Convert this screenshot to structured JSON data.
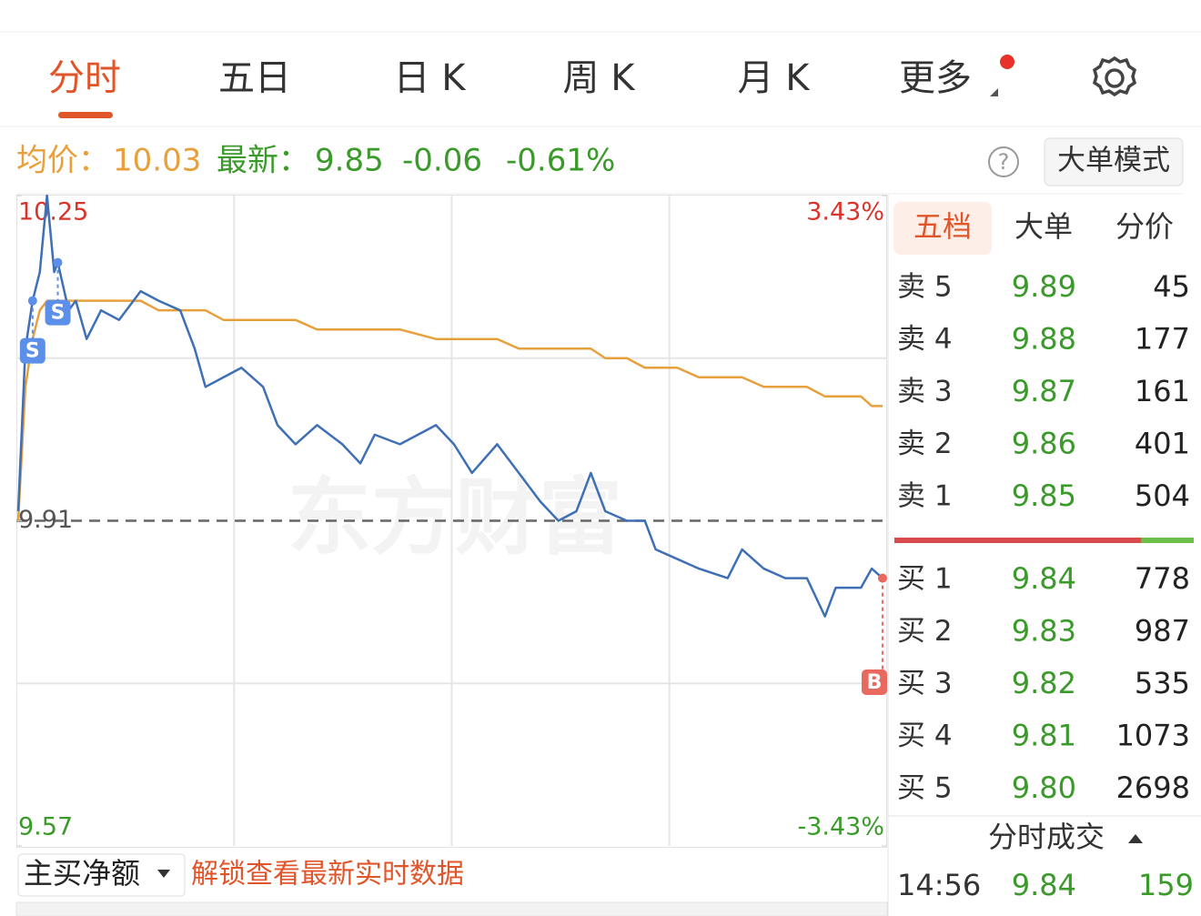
{
  "tabs": [
    "分时",
    "五日",
    "日 K",
    "周 K",
    "月 K",
    "更多"
  ],
  "info": {
    "avg_label": "均价：",
    "avg": "10.03",
    "latest_label": "最新：",
    "latest": "9.85",
    "change": "-0.06",
    "change_pct": "-0.61%",
    "help": "?",
    "mode_button": "大单模式"
  },
  "watermark": "东方财富",
  "chart_data": {
    "type": "line",
    "x": [
      0,
      2,
      4,
      6,
      8,
      10,
      11,
      14,
      16,
      19,
      23,
      28,
      34,
      39,
      45,
      49,
      52,
      57,
      62,
      68,
      72,
      77,
      83,
      90,
      95,
      99,
      106,
      116,
      121,
      126,
      133,
      139,
      145,
      150,
      155,
      159,
      163,
      169,
      174,
      177,
      183,
      189,
      197,
      201,
      207,
      213,
      219,
      224,
      227,
      234,
      237,
      240
    ],
    "series": [
      {
        "color": "#3f6fb5",
        "values": [
          9.92,
          10.09,
          10.14,
          10.17,
          10.25,
          10.17,
          10.18,
          10.13,
          10.14,
          10.1,
          10.13,
          10.12,
          10.15,
          10.14,
          10.13,
          10.09,
          10.05,
          10.06,
          10.07,
          10.05,
          10.01,
          9.99,
          10.01,
          9.99,
          9.97,
          10.0,
          9.99,
          10.01,
          9.99,
          9.96,
          9.99,
          9.96,
          9.93,
          9.91,
          9.92,
          9.96,
          9.92,
          9.91,
          9.91,
          9.88,
          9.87,
          9.86,
          9.85,
          9.88,
          9.86,
          9.85,
          9.85,
          9.81,
          9.84,
          9.84,
          9.86,
          9.85
        ]
      },
      {
        "color": "#e8a03c",
        "values": [
          9.91,
          10.05,
          10.1,
          10.13,
          10.14,
          10.14,
          10.14,
          10.14,
          10.14,
          10.14,
          10.14,
          10.14,
          10.14,
          10.13,
          10.13,
          10.13,
          10.13,
          10.12,
          10.12,
          10.12,
          10.12,
          10.12,
          10.11,
          10.11,
          10.11,
          10.11,
          10.11,
          10.1,
          10.1,
          10.1,
          10.1,
          10.09,
          10.09,
          10.09,
          10.09,
          10.09,
          10.08,
          10.08,
          10.07,
          10.07,
          10.07,
          10.06,
          10.06,
          10.06,
          10.05,
          10.05,
          10.05,
          10.04,
          10.04,
          10.04,
          10.03,
          10.03
        ]
      }
    ],
    "xlim": [
      0,
      240
    ],
    "ylim": [
      9.57,
      10.25
    ],
    "yticks": [
      10.25,
      9.91,
      9.57
    ],
    "base_close": 9.91,
    "y2lim": [
      -3.43,
      3.43
    ],
    "y2ticks": [
      {
        "value": 3.43,
        "label": "3.43%"
      },
      {
        "value": -3.43,
        "label": "-3.43%"
      }
    ],
    "grid": true,
    "markers": [
      {
        "label": "S",
        "x": 4
      },
      {
        "label": "S",
        "x": 11
      },
      {
        "label": "B",
        "x": 240
      }
    ]
  },
  "indicator": {
    "selector": "主买净额",
    "unlock": "解锁查看最新实时数据"
  },
  "book": {
    "tabs": [
      "五档",
      "大单",
      "分价"
    ],
    "sell": [
      {
        "label": "卖 5",
        "price": "9.89",
        "volume": 45
      },
      {
        "label": "卖 4",
        "price": "9.88",
        "volume": 177
      },
      {
        "label": "卖 3",
        "price": "9.87",
        "volume": 161
      },
      {
        "label": "卖 2",
        "price": "9.86",
        "volume": 401
      },
      {
        "label": "卖 1",
        "price": "9.85",
        "volume": 504
      }
    ],
    "buy": [
      {
        "label": "买 1",
        "price": "9.84",
        "volume": 778
      },
      {
        "label": "买 2",
        "price": "9.83",
        "volume": 987
      },
      {
        "label": "买 3",
        "price": "9.82",
        "volume": 535
      },
      {
        "label": "买 4",
        "price": "9.81",
        "volume": 1073
      },
      {
        "label": "买 5",
        "price": "9.80",
        "volume": 2698
      }
    ]
  },
  "trades": {
    "title": "分时成交",
    "rows": [
      {
        "time": "14:56",
        "price": "9.84",
        "volume": 159
      }
    ]
  }
}
